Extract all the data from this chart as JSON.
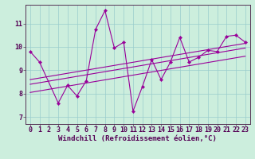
{
  "xlabel": "Windchill (Refroidissement éolien,°C)",
  "background_color": "#cceedd",
  "line_color": "#990099",
  "xlim": [
    -0.5,
    23.5
  ],
  "ylim": [
    6.7,
    11.8
  ],
  "yticks": [
    7,
    8,
    9,
    10,
    11
  ],
  "xticks": [
    0,
    1,
    2,
    3,
    4,
    5,
    6,
    7,
    8,
    9,
    10,
    11,
    12,
    13,
    14,
    15,
    16,
    17,
    18,
    19,
    20,
    21,
    22,
    23
  ],
  "data_x": [
    0,
    1,
    3,
    4,
    5,
    6,
    7,
    8,
    9,
    10,
    11,
    12,
    13,
    14,
    15,
    16,
    17,
    18,
    19,
    20,
    21,
    22,
    23
  ],
  "data_y": [
    9.8,
    9.35,
    7.6,
    8.35,
    7.9,
    8.55,
    10.75,
    11.55,
    9.95,
    10.2,
    7.25,
    8.3,
    9.45,
    8.6,
    9.35,
    10.4,
    9.35,
    9.55,
    9.85,
    9.8,
    10.45,
    10.5,
    10.2
  ],
  "trend1_x": [
    0,
    23
  ],
  "trend1_y": [
    8.05,
    9.6
  ],
  "trend2_x": [
    0,
    23
  ],
  "trend2_y": [
    8.4,
    9.95
  ],
  "trend3_x": [
    0,
    23
  ],
  "trend3_y": [
    8.6,
    10.15
  ],
  "grid_color": "#99cccc",
  "xlabel_fontsize": 6.5,
  "tick_fontsize": 6
}
